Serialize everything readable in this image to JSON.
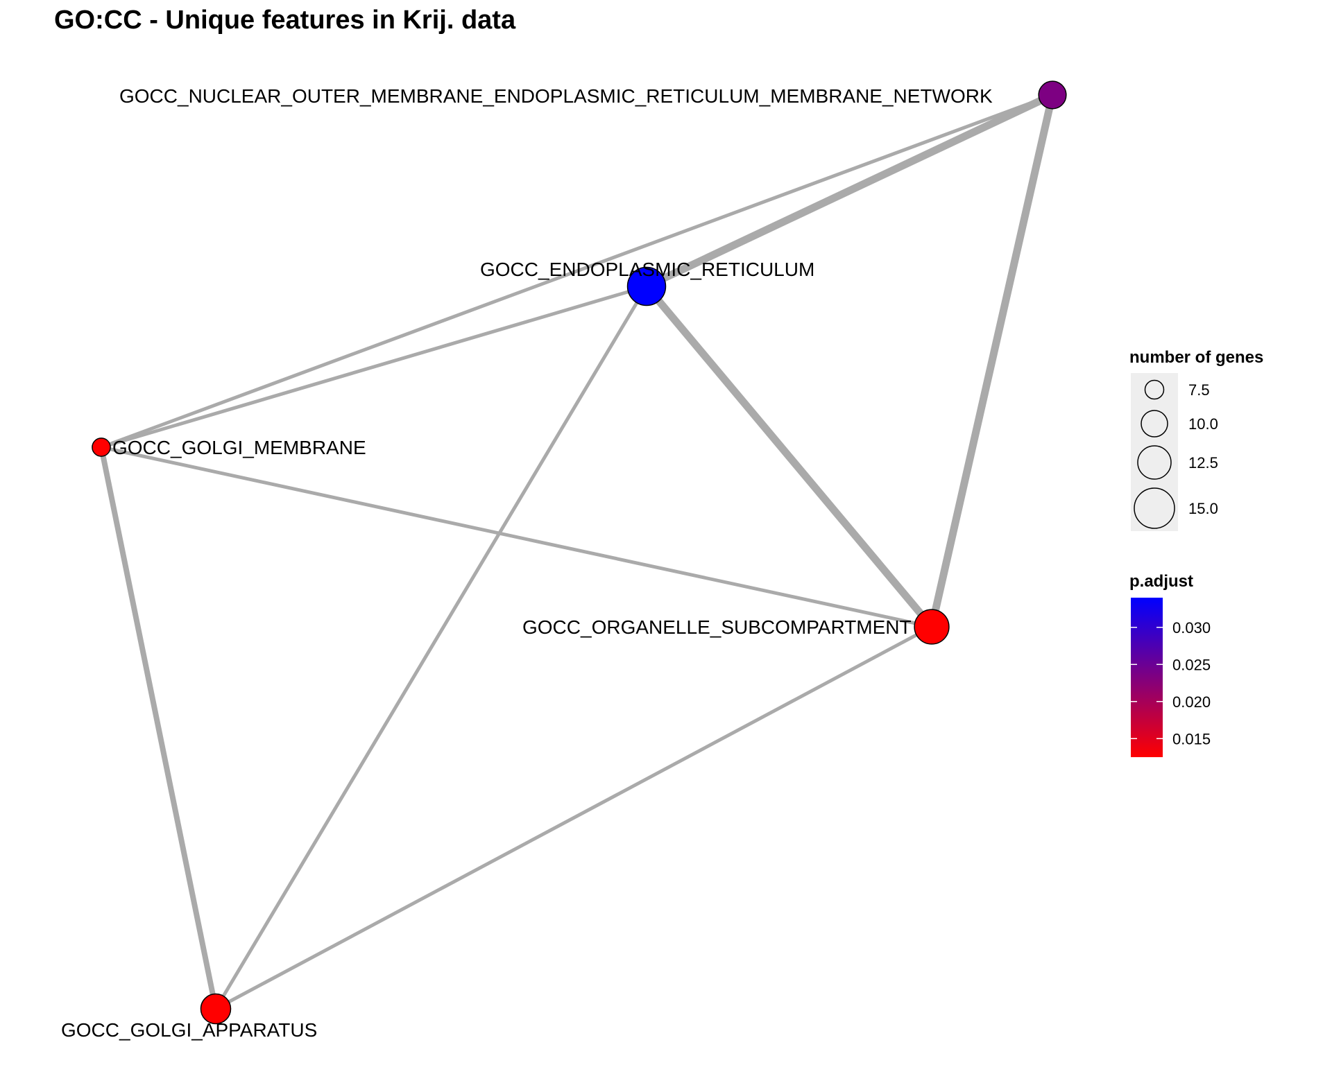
{
  "title": "GO:CC - Unique features in Krij. data",
  "colors": {
    "edge": "#aaaaaa",
    "low_p": "#ff0000",
    "high_p": "#0000ff",
    "legend_bg": "#eeeeee"
  },
  "nodes": [
    {
      "id": "n1",
      "label": "GOCC_NUCLEAR_OUTER_MEMBRANE_ENDOPLASMIC_RETICULUM_MEMBRANE_NETWORK",
      "p_adjust": 0.0235,
      "size": 10.0
    },
    {
      "id": "n2",
      "label": "GOCC_ENDOPLASMIC_RETICULUM",
      "p_adjust": 0.034,
      "size": 14.5
    },
    {
      "id": "n3",
      "label": "GOCC_GOLGI_MEMBRANE",
      "p_adjust": 0.0125,
      "size": 6.0
    },
    {
      "id": "n4",
      "label": "GOCC_ORGANELLE_SUBCOMPARTMENT",
      "p_adjust": 0.0125,
      "size": 13.0
    },
    {
      "id": "n5",
      "label": "GOCC_GOLGI_APPARATUS",
      "p_adjust": 0.0125,
      "size": 11.0
    }
  ],
  "edges": [
    {
      "source": "n1",
      "target": "n2",
      "weight": 3
    },
    {
      "source": "n1",
      "target": "n4",
      "weight": 3
    },
    {
      "source": "n1",
      "target": "n3",
      "weight": 1
    },
    {
      "source": "n2",
      "target": "n4",
      "weight": 3
    },
    {
      "source": "n2",
      "target": "n3",
      "weight": 1
    },
    {
      "source": "n2",
      "target": "n5",
      "weight": 1
    },
    {
      "source": "n3",
      "target": "n4",
      "weight": 1
    },
    {
      "source": "n3",
      "target": "n5",
      "weight": 2
    },
    {
      "source": "n4",
      "target": "n5",
      "weight": 1
    }
  ],
  "legend_size": {
    "title": "number of genes",
    "entries": [
      {
        "label": "7.5",
        "value": 7.5
      },
      {
        "label": "10.0",
        "value": 10.0
      },
      {
        "label": "12.5",
        "value": 12.5
      },
      {
        "label": "15.0",
        "value": 15.0
      }
    ]
  },
  "legend_color": {
    "title": "p.adjust",
    "ticks": [
      {
        "label": "0.030",
        "value": 0.03
      },
      {
        "label": "0.025",
        "value": 0.025
      },
      {
        "label": "0.020",
        "value": 0.02
      },
      {
        "label": "0.015",
        "value": 0.015
      }
    ],
    "range": [
      0.0125,
      0.034
    ]
  }
}
